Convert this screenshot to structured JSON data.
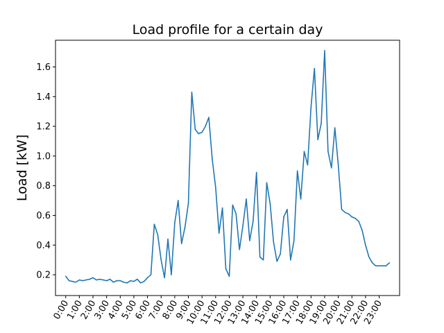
{
  "chart_data": {
    "type": "line",
    "title": "Load profile for a certain day",
    "xlabel": "",
    "ylabel": "Load [kW]",
    "ylim": [
      0.06,
      1.78
    ],
    "yticks": [
      0.2,
      0.4,
      0.6,
      0.8,
      1.0,
      1.2,
      1.4,
      1.6
    ],
    "ytick_labels": [
      "0.2",
      "0.4",
      "0.6",
      "0.8",
      "1.0",
      "1.2",
      "1.4",
      "1.6"
    ],
    "xticks": [
      "0:00",
      "1:00",
      "2:00",
      "3:00",
      "4:00",
      "5:00",
      "6:00",
      "7:00",
      "8:00",
      "9:00",
      "10:00",
      "11:00",
      "12:00",
      "13:00",
      "14:00",
      "15:00",
      "16:00",
      "17:00",
      "18:00",
      "19:00",
      "20:00",
      "21:00",
      "22:00",
      "23:00"
    ],
    "interval_minutes": 15,
    "grid": false,
    "color": "#1f77b4",
    "series": [
      {
        "values": [
          0.19,
          0.16,
          0.155,
          0.15,
          0.165,
          0.16,
          0.165,
          0.17,
          0.18,
          0.165,
          0.17,
          0.165,
          0.16,
          0.17,
          0.15,
          0.16,
          0.16,
          0.15,
          0.145,
          0.16,
          0.155,
          0.17,
          0.145,
          0.155,
          0.18,
          0.2,
          0.54,
          0.47,
          0.3,
          0.18,
          0.44,
          0.2,
          0.55,
          0.7,
          0.41,
          0.52,
          0.68,
          1.43,
          1.18,
          1.15,
          1.16,
          1.2,
          1.26,
          0.98,
          0.79,
          0.48,
          0.65,
          0.24,
          0.19,
          0.67,
          0.61,
          0.37,
          0.53,
          0.71,
          0.43,
          0.56,
          0.89,
          0.32,
          0.3,
          0.82,
          0.68,
          0.42,
          0.29,
          0.34,
          0.59,
          0.64,
          0.3,
          0.43,
          0.9,
          0.71,
          1.03,
          0.94,
          1.33,
          1.59,
          1.11,
          1.22,
          1.71,
          1.03,
          0.92,
          1.19,
          0.94,
          0.64,
          0.62,
          0.61,
          0.59,
          0.58,
          0.56,
          0.5,
          0.4,
          0.32,
          0.28,
          0.26,
          0.26,
          0.26,
          0.26,
          0.28
        ]
      }
    ]
  }
}
